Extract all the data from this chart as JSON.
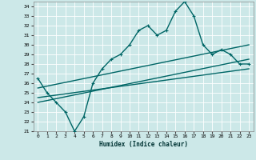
{
  "xlabel": "Humidex (Indice chaleur)",
  "bg_color": "#cce8e8",
  "grid_color": "#aacccc",
  "line_color": "#006666",
  "xlim": [
    -0.5,
    23.5
  ],
  "ylim": [
    21,
    34.5
  ],
  "yticks": [
    21,
    22,
    23,
    24,
    25,
    26,
    27,
    28,
    29,
    30,
    31,
    32,
    33,
    34
  ],
  "xticks": [
    0,
    1,
    2,
    3,
    4,
    5,
    6,
    7,
    8,
    9,
    10,
    11,
    12,
    13,
    14,
    15,
    16,
    17,
    18,
    19,
    20,
    21,
    22,
    23
  ],
  "series1_x": [
    0,
    1,
    2,
    3,
    4,
    5,
    6,
    7,
    8,
    9,
    10,
    11,
    12,
    13,
    14,
    15,
    16,
    17,
    18,
    19,
    20,
    21,
    22,
    23
  ],
  "series1_y": [
    26.5,
    25.0,
    24.0,
    23.0,
    21.0,
    22.5,
    26.0,
    27.5,
    28.5,
    29.0,
    30.0,
    31.5,
    32.0,
    31.0,
    31.5,
    33.5,
    34.5,
    33.0,
    30.0,
    29.0,
    29.5,
    29.0,
    28.0,
    28.0
  ],
  "trend1_x0": 0,
  "trend1_y0": 25.5,
  "trend1_x1": 23,
  "trend1_y1": 30.0,
  "trend2_x0": 0,
  "trend2_y0": 24.5,
  "trend2_x1": 23,
  "trend2_y1": 27.5,
  "trend3_x0": 0,
  "trend3_y0": 24.0,
  "trend3_x1": 23,
  "trend3_y1": 28.5,
  "line_width": 1.0,
  "marker": "+"
}
